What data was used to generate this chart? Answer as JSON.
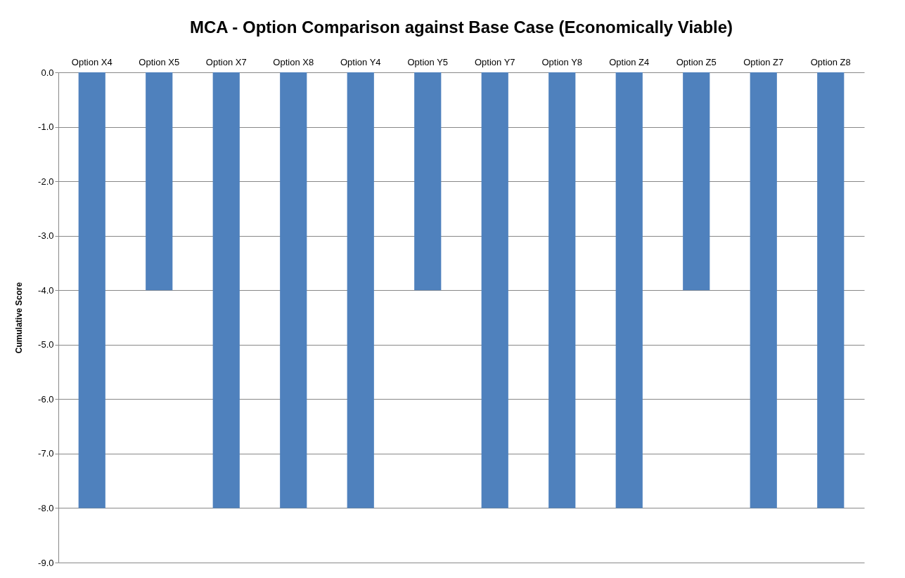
{
  "chart_data": {
    "type": "bar",
    "title": "MCA - Option Comparison against Base Case (Economically Viable)",
    "ylabel": "Cumulative Score",
    "categories": [
      "Option X4",
      "Option X5",
      "Option X7",
      "Option X8",
      "Option Y4",
      "Option Y5",
      "Option Y7",
      "Option Y8",
      "Option Z4",
      "Option Z5",
      "Option Z7",
      "Option Z8"
    ],
    "values": [
      -8,
      -4,
      -8,
      -8,
      -8,
      -4,
      -8,
      -8,
      -8,
      -4,
      -8,
      -8
    ],
    "color": "#4f81bd",
    "ylim": [
      -9,
      0
    ],
    "yticks": [
      {
        "value": 0,
        "label": "0.0"
      },
      {
        "value": -1,
        "label": "-1.0"
      },
      {
        "value": -2,
        "label": "-2.0"
      },
      {
        "value": -3,
        "label": "-3.0"
      },
      {
        "value": -4,
        "label": "-4.0"
      },
      {
        "value": -5,
        "label": "-5.0"
      },
      {
        "value": -6,
        "label": "-6.0"
      },
      {
        "value": -7,
        "label": "-7.0"
      },
      {
        "value": -8,
        "label": "-8.0"
      },
      {
        "value": -9,
        "label": "-9.0"
      }
    ],
    "grid": "y"
  }
}
